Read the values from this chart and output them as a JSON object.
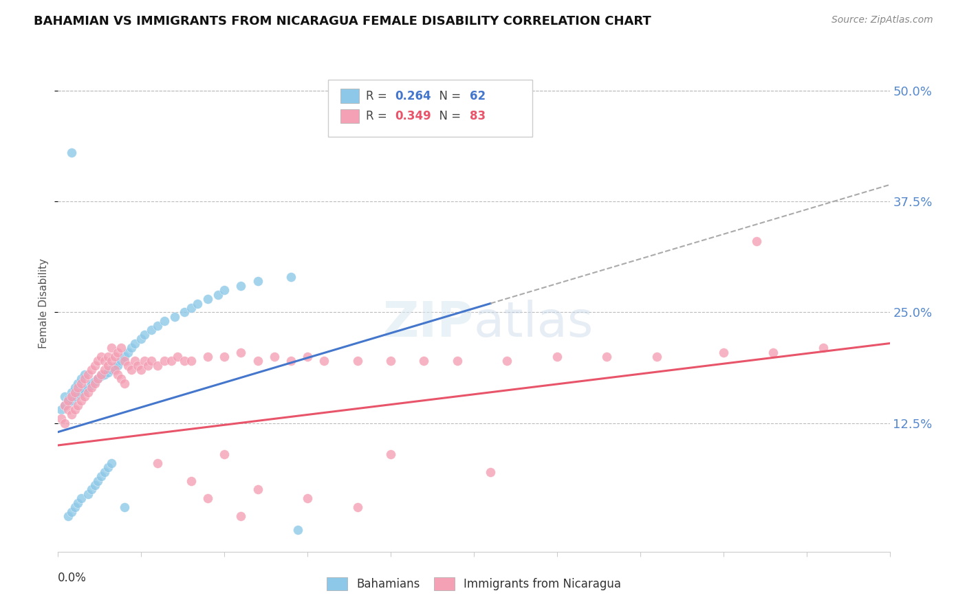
{
  "title": "BAHAMIAN VS IMMIGRANTS FROM NICARAGUA FEMALE DISABILITY CORRELATION CHART",
  "source": "Source: ZipAtlas.com",
  "ylabel": "Female Disability",
  "ytick_labels": [
    "12.5%",
    "25.0%",
    "37.5%",
    "50.0%"
  ],
  "ytick_values": [
    0.125,
    0.25,
    0.375,
    0.5
  ],
  "xlim": [
    0.0,
    0.25
  ],
  "ylim": [
    -0.02,
    0.54
  ],
  "bahamians_color": "#8ec8e8",
  "nicaragua_color": "#f4a0b5",
  "trend_bahamian_color": "#4477cc",
  "trend_nicaragua_color": "#e8556a",
  "trend_dashed_color": "#aaaaaa",
  "watermark": "ZIPatlas",
  "R_bahamian": 0.264,
  "N_bahamian": 62,
  "R_nicaragua": 0.349,
  "N_nicaragua": 83,
  "bahamians_x": [
    0.001,
    0.002,
    0.002,
    0.003,
    0.003,
    0.003,
    0.004,
    0.004,
    0.004,
    0.005,
    0.005,
    0.005,
    0.006,
    0.006,
    0.006,
    0.007,
    0.007,
    0.007,
    0.008,
    0.008,
    0.009,
    0.009,
    0.01,
    0.01,
    0.01,
    0.011,
    0.011,
    0.012,
    0.012,
    0.013,
    0.013,
    0.014,
    0.014,
    0.015,
    0.015,
    0.016,
    0.016,
    0.017,
    0.018,
    0.019,
    0.02,
    0.021,
    0.022,
    0.023,
    0.025,
    0.026,
    0.028,
    0.03,
    0.032,
    0.035,
    0.038,
    0.04,
    0.042,
    0.045,
    0.048,
    0.05,
    0.055,
    0.06,
    0.07,
    0.02,
    0.072,
    0.004
  ],
  "bahamians_y": [
    0.14,
    0.145,
    0.155,
    0.148,
    0.152,
    0.02,
    0.15,
    0.16,
    0.025,
    0.155,
    0.165,
    0.03,
    0.158,
    0.17,
    0.035,
    0.16,
    0.175,
    0.04,
    0.162,
    0.18,
    0.165,
    0.045,
    0.168,
    0.17,
    0.05,
    0.172,
    0.055,
    0.175,
    0.06,
    0.178,
    0.065,
    0.18,
    0.07,
    0.182,
    0.075,
    0.185,
    0.08,
    0.188,
    0.19,
    0.195,
    0.2,
    0.205,
    0.21,
    0.215,
    0.22,
    0.225,
    0.23,
    0.235,
    0.24,
    0.245,
    0.25,
    0.255,
    0.26,
    0.265,
    0.27,
    0.275,
    0.28,
    0.285,
    0.29,
    0.03,
    0.005,
    0.43
  ],
  "nicaragua_x": [
    0.001,
    0.002,
    0.002,
    0.003,
    0.003,
    0.004,
    0.004,
    0.005,
    0.005,
    0.006,
    0.006,
    0.007,
    0.007,
    0.008,
    0.008,
    0.009,
    0.009,
    0.01,
    0.01,
    0.011,
    0.011,
    0.012,
    0.012,
    0.013,
    0.013,
    0.014,
    0.014,
    0.015,
    0.015,
    0.016,
    0.016,
    0.017,
    0.017,
    0.018,
    0.018,
    0.019,
    0.019,
    0.02,
    0.02,
    0.021,
    0.022,
    0.023,
    0.024,
    0.025,
    0.026,
    0.027,
    0.028,
    0.03,
    0.032,
    0.034,
    0.036,
    0.038,
    0.04,
    0.045,
    0.05,
    0.055,
    0.06,
    0.065,
    0.07,
    0.075,
    0.08,
    0.09,
    0.1,
    0.11,
    0.12,
    0.135,
    0.15,
    0.165,
    0.18,
    0.2,
    0.215,
    0.23,
    0.05,
    0.1,
    0.13,
    0.06,
    0.075,
    0.09,
    0.03,
    0.04,
    0.045,
    0.055,
    0.21
  ],
  "nicaragua_y": [
    0.13,
    0.125,
    0.145,
    0.14,
    0.15,
    0.135,
    0.155,
    0.14,
    0.16,
    0.145,
    0.165,
    0.15,
    0.17,
    0.155,
    0.175,
    0.16,
    0.18,
    0.165,
    0.185,
    0.17,
    0.19,
    0.175,
    0.195,
    0.18,
    0.2,
    0.185,
    0.195,
    0.19,
    0.2,
    0.195,
    0.21,
    0.2,
    0.185,
    0.205,
    0.18,
    0.21,
    0.175,
    0.195,
    0.17,
    0.19,
    0.185,
    0.195,
    0.19,
    0.185,
    0.195,
    0.19,
    0.195,
    0.19,
    0.195,
    0.195,
    0.2,
    0.195,
    0.195,
    0.2,
    0.2,
    0.205,
    0.195,
    0.2,
    0.195,
    0.2,
    0.195,
    0.195,
    0.195,
    0.195,
    0.195,
    0.195,
    0.2,
    0.2,
    0.2,
    0.205,
    0.205,
    0.21,
    0.09,
    0.09,
    0.07,
    0.05,
    0.04,
    0.03,
    0.08,
    0.06,
    0.04,
    0.02,
    0.33
  ],
  "trend_b_x0": 0.0,
  "trend_b_y0": 0.115,
  "trend_b_x1": 0.13,
  "trend_b_y1": 0.26,
  "trend_n_x0": 0.0,
  "trend_n_y0": 0.1,
  "trend_n_x1": 0.25,
  "trend_n_y1": 0.215
}
